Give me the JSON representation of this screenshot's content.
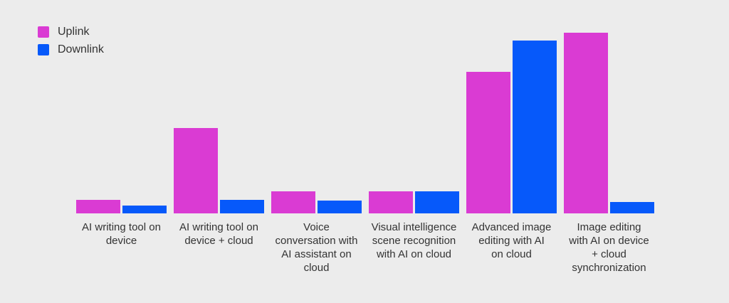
{
  "page": {
    "background": "#ececec",
    "text_color": "#333333"
  },
  "chart_data": {
    "type": "bar",
    "title": "",
    "xlabel": "",
    "ylabel": "",
    "ylim": [
      0,
      100
    ],
    "grid": false,
    "axes_visible": false,
    "legend_position": "top-left",
    "categories": [
      "AI writing tool on\ndevice",
      "AI writing tool on\ndevice + cloud",
      "Voice\nconversation with\nAI assistant on\ncloud",
      "Visual intelligence\nscene recognition\nwith AI on cloud",
      "Advanced image\nediting with AI\non cloud",
      "Image editing\nwith AI on device\n+ cloud\nsynchronization"
    ],
    "series": [
      {
        "name": "Uplink",
        "color": "#da3bd3",
        "values": [
          7.5,
          47.2,
          12.2,
          12.2,
          78.3,
          100
        ]
      },
      {
        "name": "Downlink",
        "color": "#0659fa",
        "values": [
          4.3,
          7.5,
          7.1,
          12.2,
          95.7,
          6.3
        ]
      }
    ]
  }
}
